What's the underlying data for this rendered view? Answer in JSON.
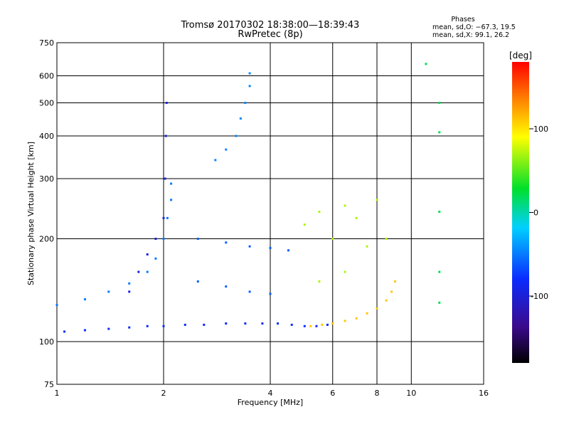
{
  "header": {
    "title_line1": "Tromsø 20170302 18:38:00—18:39:43",
    "title_line2": "RwPretec (8p)"
  },
  "phases": {
    "heading": "Phases",
    "o_line": "mean, sd,O: −67.3, 19.5",
    "x_line": "mean, sd,X:  99.1, 26.2"
  },
  "chart_data": {
    "type": "scatter",
    "xlabel": "Frequency [MHz]",
    "ylabel": "Stationary phase Virtual Height [km]",
    "x_scale": "log",
    "y_scale": "log",
    "xlim": [
      1,
      16
    ],
    "ylim": [
      75,
      750
    ],
    "x_ticks": [
      1,
      2,
      4,
      6,
      8,
      10,
      16
    ],
    "y_ticks": [
      75,
      100,
      200,
      300,
      400,
      500,
      600,
      750
    ],
    "x_gridlines": [
      2,
      4,
      6,
      8,
      10
    ],
    "y_gridlines": [
      100,
      200,
      300,
      400,
      500,
      600
    ],
    "colorbar": {
      "label": "[deg]",
      "ticks": [
        100,
        0,
        -100
      ],
      "range": [
        -180,
        180
      ],
      "colormap": "rainbow"
    },
    "series": [
      {
        "component": "O-mode lower trace",
        "phase_deg": -80,
        "points": [
          [
            1.05,
            107
          ],
          [
            1.2,
            108
          ],
          [
            1.4,
            109
          ],
          [
            1.6,
            110
          ],
          [
            1.8,
            111
          ],
          [
            2.0,
            111
          ],
          [
            2.3,
            112
          ],
          [
            2.6,
            112
          ],
          [
            3.0,
            113
          ],
          [
            3.4,
            113
          ],
          [
            3.8,
            113
          ],
          [
            4.2,
            113
          ],
          [
            4.6,
            112
          ],
          [
            5.0,
            111
          ],
          [
            5.4,
            111
          ],
          [
            5.8,
            112
          ]
        ]
      },
      {
        "component": "X-mode rising trace",
        "phase_deg": 110,
        "points": [
          [
            5.2,
            111
          ],
          [
            5.6,
            112
          ],
          [
            6.0,
            113
          ],
          [
            6.5,
            115
          ],
          [
            7.0,
            117
          ],
          [
            7.5,
            121
          ],
          [
            8.0,
            125
          ],
          [
            8.5,
            132
          ],
          [
            8.8,
            140
          ],
          [
            9.0,
            150
          ]
        ]
      },
      {
        "component": "O-mode layer trace 1.0–2.0 MHz",
        "phase_deg": -50,
        "points": [
          [
            1.0,
            128
          ],
          [
            1.2,
            133
          ],
          [
            1.4,
            140
          ],
          [
            1.6,
            148
          ],
          [
            1.8,
            160
          ],
          [
            1.9,
            175
          ],
          [
            2.0,
            200
          ],
          [
            2.05,
            230
          ],
          [
            2.1,
            260
          ],
          [
            2.1,
            290
          ]
        ]
      },
      {
        "component": "O-mode trace 1.6–2.2 MHz",
        "phase_deg": -95,
        "points": [
          [
            1.6,
            140
          ],
          [
            1.7,
            160
          ],
          [
            1.8,
            180
          ],
          [
            1.9,
            200
          ],
          [
            2.0,
            230
          ],
          [
            2.02,
            300
          ],
          [
            2.03,
            400
          ],
          [
            2.04,
            500
          ]
        ]
      },
      {
        "component": "Upper trace 2.8–3.5 MHz",
        "phase_deg": -45,
        "points": [
          [
            2.8,
            340
          ],
          [
            3.0,
            365
          ],
          [
            3.2,
            400
          ],
          [
            3.3,
            450
          ],
          [
            3.4,
            500
          ],
          [
            3.5,
            560
          ],
          [
            3.5,
            610
          ]
        ]
      },
      {
        "component": "Band 2.5–4.5 MHz",
        "phase_deg": -60,
        "points": [
          [
            2.5,
            200
          ],
          [
            3.0,
            195
          ],
          [
            3.5,
            190
          ],
          [
            4.0,
            188
          ],
          [
            4.5,
            185
          ],
          [
            2.5,
            150
          ],
          [
            3.0,
            145
          ],
          [
            3.5,
            140
          ],
          [
            4.0,
            138
          ]
        ]
      },
      {
        "component": "Scatter 5–8 MHz",
        "phase_deg": 70,
        "points": [
          [
            5.0,
            220
          ],
          [
            5.5,
            240
          ],
          [
            6.0,
            200
          ],
          [
            6.5,
            250
          ],
          [
            7.0,
            230
          ],
          [
            7.5,
            190
          ],
          [
            8.0,
            260
          ],
          [
            8.5,
            200
          ],
          [
            5.5,
            150
          ],
          [
            6.5,
            160
          ]
        ]
      },
      {
        "component": "Isolated 11–12 MHz",
        "phase_deg": 20,
        "points": [
          [
            11.0,
            650
          ],
          [
            12.0,
            500
          ],
          [
            12.0,
            410
          ],
          [
            12.0,
            240
          ],
          [
            12.0,
            160
          ],
          [
            12.0,
            130
          ]
        ]
      }
    ]
  }
}
